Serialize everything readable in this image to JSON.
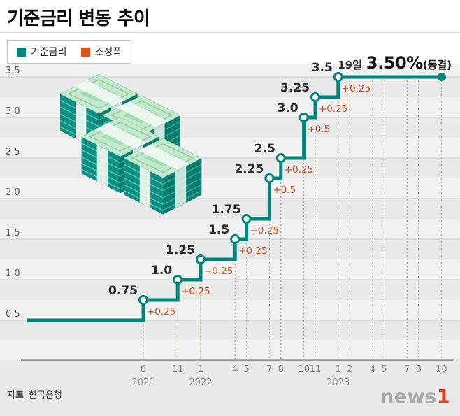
{
  "page": {
    "title": "기준금리 변동 추이"
  },
  "legend": {
    "items": [
      {
        "label": "기준금리",
        "color": "#00857b"
      },
      {
        "label": "조정폭",
        "color": "#d4531e"
      }
    ]
  },
  "annotation": {
    "day": "19일",
    "rate": "3.50%",
    "status": "(동결)"
  },
  "footer": {
    "source_label": "자료",
    "source_value": "한국은행"
  },
  "logo": {
    "text": "news",
    "accent": "1"
  },
  "chart_data": {
    "type": "line",
    "subtype": "step",
    "title": "기준금리 변동 추이",
    "unit": "%",
    "legend": [
      "기준금리",
      "조정폭"
    ],
    "annotation_text": "19일 3.50%(동결)",
    "start_value": 0.5,
    "ylim": [
      0.5,
      3.5
    ],
    "yticks": [
      0.5,
      1.0,
      1.5,
      2.0,
      2.5,
      3.0,
      3.5
    ],
    "grid": true,
    "events": [
      {
        "date": "2021-08",
        "month_label": "8",
        "year_label": "2021",
        "rate": 0.75,
        "rate_label": "0.75",
        "change": "+0.25"
      },
      {
        "date": "2021-11",
        "month_label": "11",
        "rate": 1.0,
        "rate_label": "1.0",
        "change": "+0.25"
      },
      {
        "date": "2022-01",
        "month_label": "1",
        "year_label": "2022",
        "rate": 1.25,
        "rate_label": "1.25",
        "change": "+0.25"
      },
      {
        "date": "2022-04",
        "month_label": "4",
        "rate": 1.5,
        "rate_label": "1.5",
        "change": "+0.25"
      },
      {
        "date": "2022-05",
        "month_label": "5",
        "rate": 1.75,
        "rate_label": "1.75",
        "change": "+0.25"
      },
      {
        "date": "2022-07",
        "month_label": "7",
        "rate": 2.25,
        "rate_label": "2.25",
        "change": "+0.5"
      },
      {
        "date": "2022-08",
        "month_label": "8",
        "rate": 2.5,
        "rate_label": "2.5",
        "change": "+0.25"
      },
      {
        "date": "2022-10",
        "month_label": "10",
        "rate": 3.0,
        "rate_label": "3.0",
        "change": "+0.5"
      },
      {
        "date": "2022-11",
        "month_label": "11",
        "rate": 3.25,
        "rate_label": "3.25",
        "change": "+0.25"
      },
      {
        "date": "2023-01",
        "month_label": "1",
        "year_label": "2023",
        "rate": 3.5,
        "rate_label": "3.5",
        "change": "+0.25"
      },
      {
        "date": "2023-02",
        "month_label": "2",
        "rate": 3.5,
        "hold": true
      },
      {
        "date": "2023-04",
        "month_label": "4",
        "rate": 3.5,
        "hold": true
      },
      {
        "date": "2023-05",
        "month_label": "5",
        "rate": 3.5,
        "hold": true
      },
      {
        "date": "2023-07",
        "month_label": "7",
        "rate": 3.5,
        "hold": true
      },
      {
        "date": "2023-08",
        "month_label": "8",
        "rate": 3.5,
        "hold": true
      },
      {
        "date": "2023-10",
        "month_label": "10",
        "rate": 3.5,
        "hold": true
      }
    ],
    "colors": {
      "line": "#00857b",
      "change": "#c8511d",
      "grid": "#cccccc",
      "axis": "#8a8a8a"
    }
  }
}
